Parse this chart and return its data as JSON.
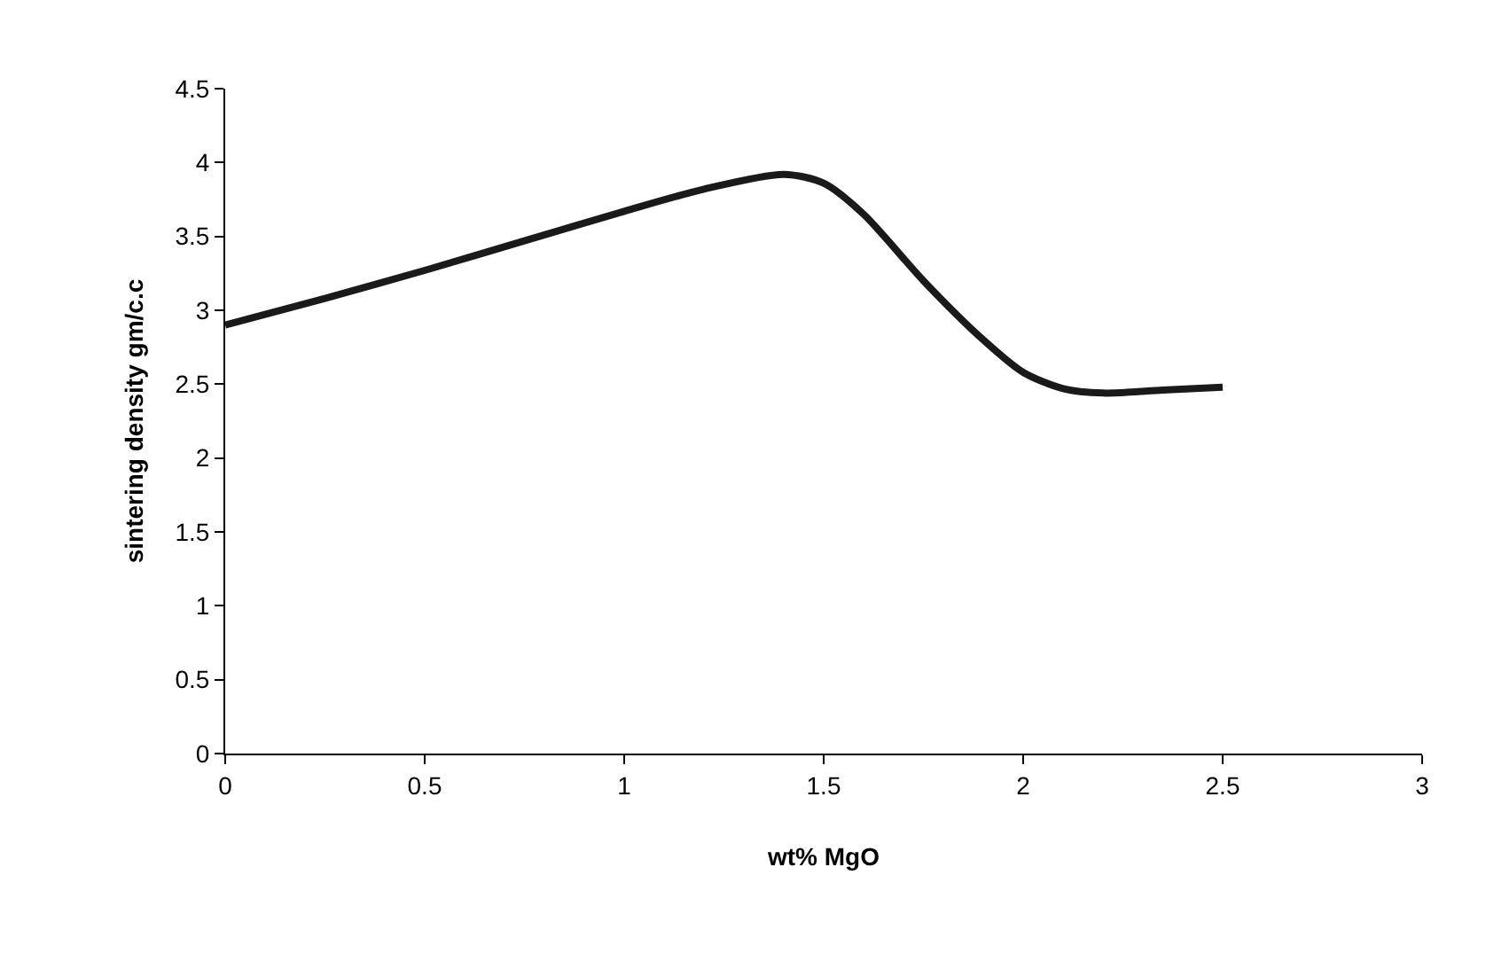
{
  "chart_data": {
    "type": "line",
    "xlabel": "wt% MgO",
    "ylabel": "sintering density gm/c.c",
    "x": [
      0,
      0.25,
      0.5,
      0.75,
      1,
      1.2,
      1.4,
      1.5,
      1.6,
      1.75,
      1.9,
      2,
      2.1,
      2.2,
      2.35,
      2.5
    ],
    "series": [
      {
        "color": "#1a1a1a",
        "values": [
          2.9,
          3.08,
          3.27,
          3.47,
          3.67,
          3.82,
          3.92,
          3.86,
          3.65,
          3.2,
          2.8,
          2.58,
          2.47,
          2.44,
          2.46,
          2.48
        ]
      }
    ],
    "xlim": [
      0,
      3
    ],
    "xticks": [
      0,
      0.5,
      1,
      1.5,
      2,
      2.5,
      3
    ],
    "ylim": [
      0,
      4.5
    ],
    "yticks": [
      0,
      0.5,
      1,
      1.5,
      2,
      2.5,
      3,
      3.5,
      4,
      4.5
    ],
    "grid": false,
    "marker": "none",
    "line_style": "solid"
  }
}
